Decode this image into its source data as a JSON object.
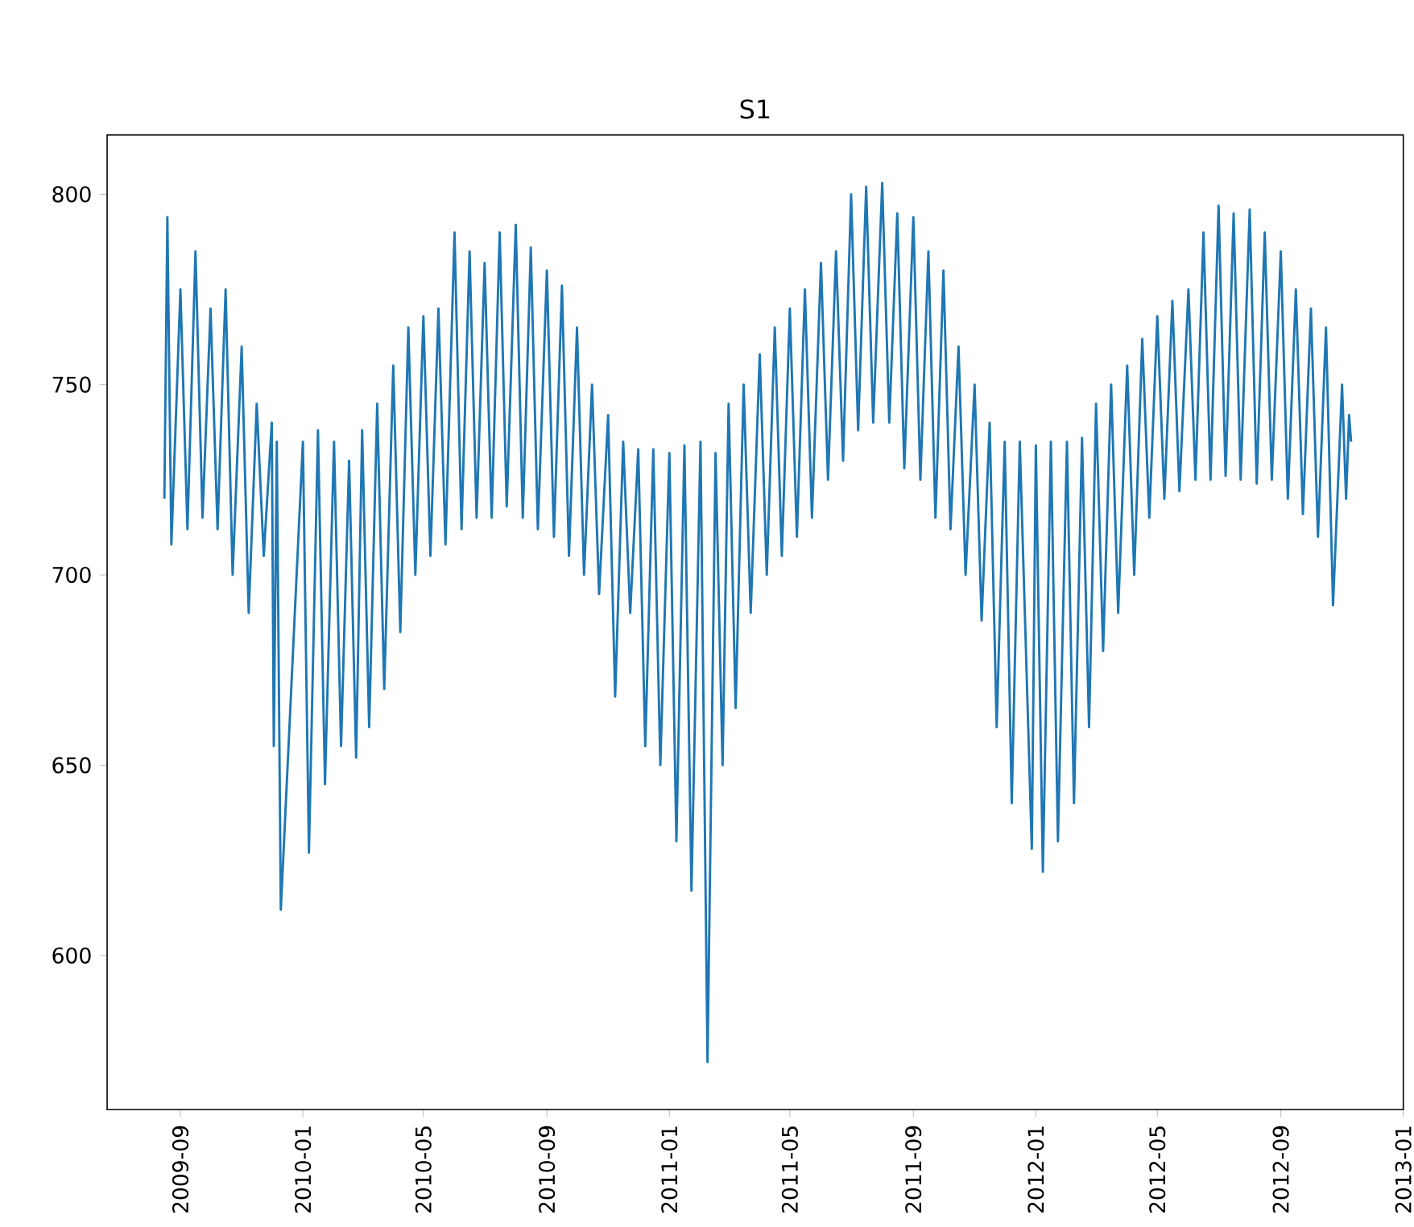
{
  "chart_data": {
    "type": "line",
    "title": "S1",
    "x": [
      "2009-08-16",
      "2009-08-19",
      "2009-08-23",
      "2009-09-01",
      "2009-09-08",
      "2009-09-16",
      "2009-09-23",
      "2009-10-01",
      "2009-10-08",
      "2009-10-16",
      "2009-10-23",
      "2009-11-01",
      "2009-11-08",
      "2009-11-16",
      "2009-11-23",
      "2009-12-01",
      "2009-12-03",
      "2009-12-06",
      "2009-12-10",
      "2010-01-01",
      "2010-01-07",
      "2010-01-16",
      "2010-01-23",
      "2010-02-01",
      "2010-02-08",
      "2010-02-16",
      "2010-02-23",
      "2010-03-01",
      "2010-03-08",
      "2010-03-16",
      "2010-03-23",
      "2010-04-01",
      "2010-04-08",
      "2010-04-16",
      "2010-04-23",
      "2010-05-01",
      "2010-05-08",
      "2010-05-16",
      "2010-05-23",
      "2010-06-01",
      "2010-06-08",
      "2010-06-16",
      "2010-06-23",
      "2010-07-01",
      "2010-07-08",
      "2010-07-16",
      "2010-07-23",
      "2010-08-01",
      "2010-08-08",
      "2010-08-16",
      "2010-08-23",
      "2010-09-01",
      "2010-09-08",
      "2010-09-16",
      "2010-09-23",
      "2010-10-01",
      "2010-10-08",
      "2010-10-16",
      "2010-10-23",
      "2010-11-01",
      "2010-11-08",
      "2010-11-16",
      "2010-11-23",
      "2010-12-01",
      "2010-12-08",
      "2010-12-16",
      "2010-12-23",
      "2011-01-01",
      "2011-01-08",
      "2011-01-16",
      "2011-01-23",
      "2011-02-01",
      "2011-02-08",
      "2011-02-16",
      "2011-02-23",
      "2011-03-01",
      "2011-03-08",
      "2011-03-16",
      "2011-03-23",
      "2011-04-01",
      "2011-04-08",
      "2011-04-16",
      "2011-04-23",
      "2011-05-01",
      "2011-05-08",
      "2011-05-16",
      "2011-05-23",
      "2011-06-01",
      "2011-06-08",
      "2011-06-16",
      "2011-06-23",
      "2011-07-01",
      "2011-07-08",
      "2011-07-16",
      "2011-07-23",
      "2011-08-01",
      "2011-08-08",
      "2011-08-16",
      "2011-08-23",
      "2011-09-01",
      "2011-09-08",
      "2011-09-16",
      "2011-09-23",
      "2011-10-01",
      "2011-10-08",
      "2011-10-16",
      "2011-10-23",
      "2011-11-01",
      "2011-11-08",
      "2011-11-16",
      "2011-11-23",
      "2011-12-01",
      "2011-12-08",
      "2011-12-16",
      "2011-12-28",
      "2012-01-01",
      "2012-01-08",
      "2012-01-16",
      "2012-01-23",
      "2012-02-01",
      "2012-02-08",
      "2012-02-16",
      "2012-02-23",
      "2012-03-01",
      "2012-03-08",
      "2012-03-16",
      "2012-03-23",
      "2012-04-01",
      "2012-04-08",
      "2012-04-16",
      "2012-04-23",
      "2012-05-01",
      "2012-05-08",
      "2012-05-16",
      "2012-05-23",
      "2012-06-01",
      "2012-06-08",
      "2012-06-16",
      "2012-06-23",
      "2012-07-01",
      "2012-07-08",
      "2012-07-16",
      "2012-07-23",
      "2012-08-01",
      "2012-08-08",
      "2012-08-16",
      "2012-08-23",
      "2012-09-01",
      "2012-09-08",
      "2012-09-16",
      "2012-09-23",
      "2012-10-01",
      "2012-10-08",
      "2012-10-16",
      "2012-10-23",
      "2012-11-01",
      "2012-11-05",
      "2012-11-08",
      "2012-11-10"
    ],
    "series": [
      {
        "color": "#1f77b4",
        "values": [
          720,
          794,
          708,
          775,
          712,
          785,
          715,
          770,
          712,
          775,
          700,
          760,
          690,
          745,
          705,
          740,
          655,
          735,
          612,
          735,
          627,
          738,
          645,
          735,
          655,
          730,
          652,
          738,
          660,
          745,
          670,
          755,
          685,
          765,
          700,
          768,
          705,
          770,
          708,
          790,
          712,
          785,
          715,
          782,
          715,
          790,
          718,
          792,
          715,
          786,
          712,
          780,
          710,
          776,
          705,
          765,
          700,
          750,
          695,
          742,
          668,
          735,
          690,
          733,
          655,
          733,
          650,
          732,
          630,
          734,
          617,
          735,
          572,
          732,
          650,
          745,
          665,
          750,
          690,
          758,
          700,
          765,
          705,
          770,
          710,
          775,
          715,
          782,
          725,
          785,
          730,
          800,
          738,
          802,
          740,
          803,
          740,
          795,
          728,
          794,
          725,
          785,
          715,
          780,
          712,
          760,
          700,
          750,
          688,
          740,
          660,
          735,
          640,
          735,
          628,
          734,
          622,
          735,
          630,
          735,
          640,
          736,
          660,
          745,
          680,
          750,
          690,
          755,
          700,
          762,
          715,
          768,
          720,
          772,
          722,
          775,
          725,
          790,
          725,
          797,
          726,
          795,
          725,
          796,
          724,
          790,
          725,
          785,
          720,
          775,
          716,
          770,
          710,
          765,
          692,
          750,
          720,
          742,
          735
        ]
      }
    ],
    "xlim": [
      "2009-06-20",
      "2013-01-01"
    ],
    "xticks": [
      "2009-09",
      "2010-01",
      "2010-05",
      "2010-09",
      "2011-01",
      "2011-05",
      "2011-09",
      "2012-01",
      "2012-05",
      "2012-09",
      "2013-01"
    ],
    "ylim": [
      559.5,
      815.6
    ],
    "yticks": [
      600,
      650,
      700,
      750,
      800
    ],
    "grid": false,
    "marker": "none",
    "line_style": "solid"
  }
}
